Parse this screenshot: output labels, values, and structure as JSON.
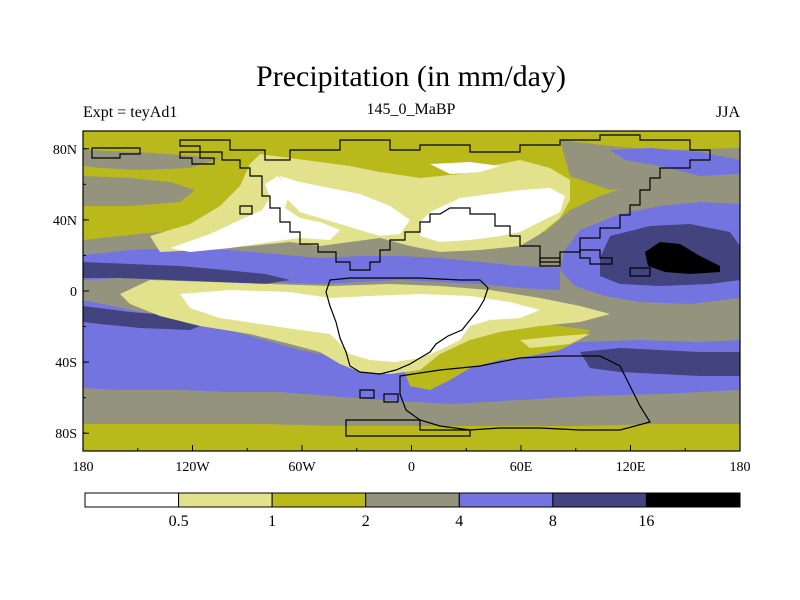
{
  "chart_data": {
    "type": "heatmap",
    "title": "Precipitation (in mm/day)",
    "left_label": "Expt = teyAd1",
    "center_label": "145_0_MaBP",
    "right_label": "JJA",
    "x_range": [
      -180,
      180
    ],
    "y_range": [
      -90,
      90
    ],
    "x_ticks": [
      {
        "value": -180,
        "label": "180"
      },
      {
        "value": -120,
        "label": "120W"
      },
      {
        "value": -60,
        "label": "60W"
      },
      {
        "value": 0,
        "label": "0"
      },
      {
        "value": 60,
        "label": "60E"
      },
      {
        "value": 120,
        "label": "120E"
      },
      {
        "value": 180,
        "label": "180"
      }
    ],
    "y_ticks": [
      {
        "value": 80,
        "label": "80N"
      },
      {
        "value": 40,
        "label": "40N"
      },
      {
        "value": 0,
        "label": "0"
      },
      {
        "value": -40,
        "label": "40S"
      },
      {
        "value": -80,
        "label": "80S"
      }
    ],
    "colorbar": {
      "levels": [
        0.5,
        1,
        2,
        4,
        8,
        16
      ],
      "level_labels": [
        "0.5",
        "1",
        "2",
        "4",
        "8",
        "16"
      ],
      "colors": [
        "#ffffff",
        "#e2e28c",
        "#b9b91c",
        "#94947e",
        "#7474e0",
        "#434380",
        "#000000"
      ]
    }
  }
}
